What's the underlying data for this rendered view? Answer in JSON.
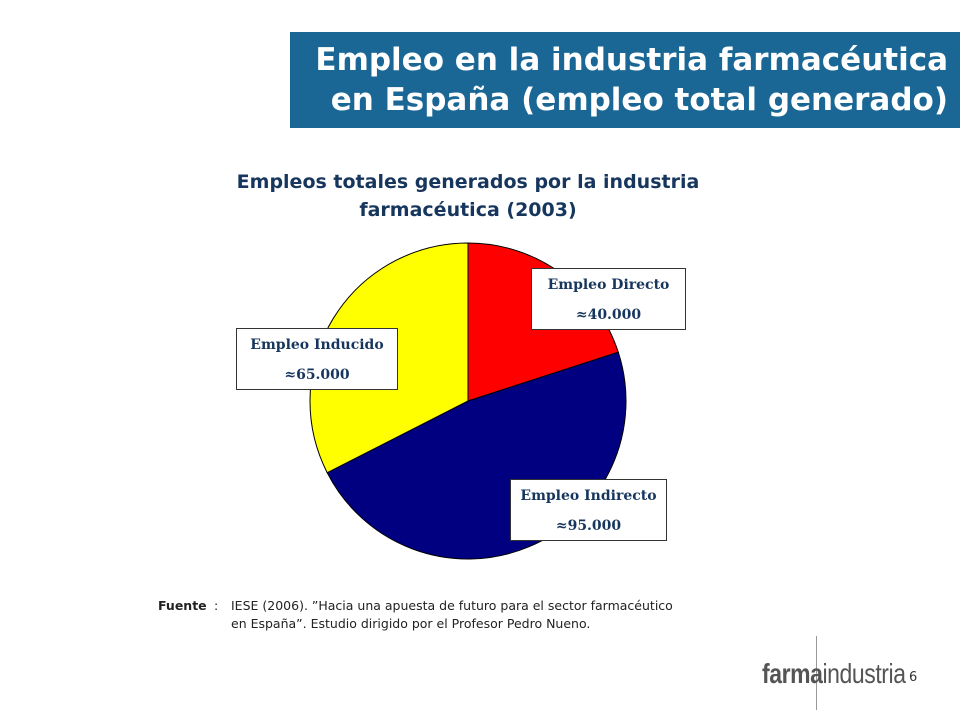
{
  "slide": {
    "title_line1": "Empleo en la industria farmacéutica",
    "title_line2": "en España (empleo total generado)",
    "page_number": "6",
    "colors": {
      "banner": "#1a6796",
      "chart_title": "#17365d"
    }
  },
  "chart_data": {
    "type": "pie",
    "title_line1": "Empleos totales generados por la industria",
    "title_line2": "farmacéutica (2003)",
    "slices": [
      {
        "name": "Empleo Directo",
        "label_value": "≈40.000",
        "value": 40000,
        "color": "#ff0000"
      },
      {
        "name": "Empleo Indirecto",
        "label_value": "≈95.000",
        "value": 95000,
        "color": "#000080"
      },
      {
        "name": "Empleo Inducido",
        "label_value": "≈65.000",
        "value": 65000,
        "color": "#ffff00"
      }
    ],
    "start_angle": "12 o'clock",
    "direction": "clockwise"
  },
  "source": {
    "label": "Fuente",
    "colon": ":",
    "line1": "IESE (2006). ”Hacia una apuesta de futuro para el sector farmacéutico",
    "line2": "en España”. Estudio dirigido por el Profesor Pedro Nueno."
  },
  "logo": {
    "bold_part": "farma",
    "regular_part": "industria"
  }
}
